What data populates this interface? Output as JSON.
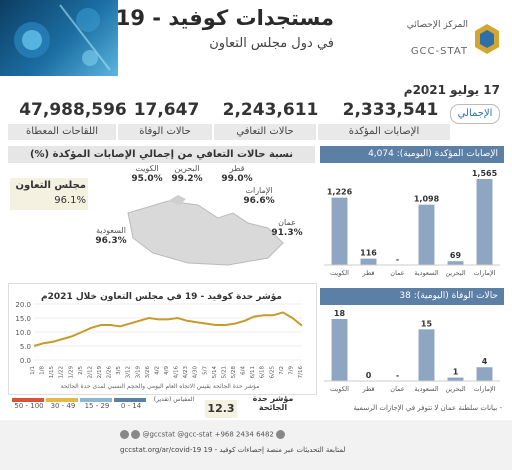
{
  "header": {
    "title": "مستجدات كوفيد - 19",
    "subtitle": "في دول مجلس التعاون",
    "org_name_ar": "المركز الإحصائي",
    "org_name_en": "GCC-STAT",
    "date": "17 يوليو 2021م"
  },
  "totals": {
    "label": "الإجمالي",
    "confirmed": {
      "value": "2,333,541",
      "label": "الإصابات المؤكدة"
    },
    "recovered": {
      "value": "2,243,611",
      "label": "حالات التعافي"
    },
    "deaths": {
      "value": "17,647",
      "label": "حالات الوفاة"
    },
    "vaccines": {
      "value": "47,988,596",
      "label": "اللقاحات المعطاة"
    }
  },
  "recovery": {
    "title": "نسبة حالات التعافي من إجمالي الإصابات المؤكدة (%)",
    "gcc_label": "مجلس التعاون",
    "gcc_value": "96.1%",
    "countries": [
      {
        "name": "الكويت",
        "value": "95.0%"
      },
      {
        "name": "البحرين",
        "value": "99.2%"
      },
      {
        "name": "قطر",
        "value": "99.0%"
      },
      {
        "name": "الإمارات",
        "value": "96.6%"
      },
      {
        "name": "السعودية",
        "value": "96.3%"
      },
      {
        "name": "عمان",
        "value": "91.3%"
      }
    ]
  },
  "gauge": {
    "title": "مؤشر حدة كوفيد - 19 في مجلس التعاون خلال 2021م",
    "note": "مؤشر حدة الجائحة يقيس الاتجاه العام اليومي والحجم النسبي لمدى حدة الجائحة",
    "value_label": "مؤشر حدة الجائحة",
    "value": "12.3",
    "scale_label": "المقياس (تقدير)",
    "legend": [
      "0 - 14",
      "15 - 29",
      "30 - 49",
      "50 - 100"
    ],
    "legend_colors": [
      "#5b7fa5",
      "#8bb6d6",
      "#e6b84a",
      "#d9533b"
    ]
  },
  "chart_data": [
    {
      "type": "bar",
      "title": "الإصابات المؤكدة (اليومية): 4,074",
      "categories": [
        "الإمارات",
        "البحرين",
        "السعودية",
        "عمان",
        "قطر",
        "الكويت"
      ],
      "values": [
        1565,
        69,
        1098,
        null,
        116,
        1226
      ],
      "value_labels": [
        "1,565",
        "69",
        "1,098",
        "-",
        "116",
        "1,226"
      ]
    },
    {
      "type": "bar",
      "title": "حالات الوفاة (اليومية): 38",
      "categories": [
        "الإمارات",
        "البحرين",
        "السعودية",
        "عمان",
        "قطر",
        "الكويت"
      ],
      "values": [
        4,
        1,
        15,
        null,
        0,
        18
      ],
      "value_labels": [
        "4",
        "1",
        "15",
        "-",
        "0",
        "18"
      ]
    },
    {
      "type": "line",
      "title": "مؤشر حدة كوفيد - 19 في مجلس التعاون خلال 2021م",
      "x": [
        "1/1",
        "1/8",
        "1/15",
        "1/22",
        "1/29",
        "2/5",
        "2/12",
        "2/19",
        "2/26",
        "3/5",
        "3/12",
        "3/19",
        "3/26",
        "4/2",
        "4/9",
        "4/16",
        "4/23",
        "4/30",
        "5/7",
        "5/14",
        "5/21",
        "5/28",
        "6/4",
        "6/11",
        "6/18",
        "6/25",
        "7/2",
        "7/9",
        "7/16"
      ],
      "values": [
        5,
        6,
        6.5,
        7.5,
        8.5,
        10,
        11.5,
        12.5,
        12.5,
        12,
        13,
        14,
        15,
        14.5,
        14.5,
        15,
        14,
        13.5,
        13,
        12.5,
        12.5,
        13,
        14,
        15.5,
        16,
        16,
        17,
        15,
        12.3
      ],
      "ylim": [
        0,
        20
      ],
      "yticks": [
        0,
        5,
        10,
        15,
        20
      ]
    }
  ],
  "footnote": "- بيانات سلطنة عمان لا تتوفر في الإجازات الرسمية",
  "footer": {
    "contacts": "@gccstat   @gcc-stat   +968 2434 6482",
    "link": "لمتابعة التحديثات عبر منصة إحصاءات كوفيد - 19  gccstat.org/ar/covid-19"
  }
}
